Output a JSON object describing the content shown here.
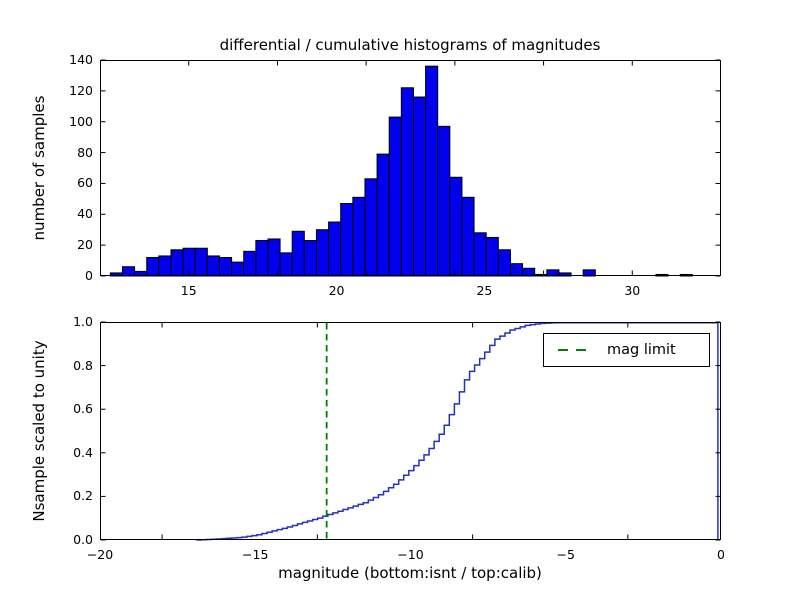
{
  "figure": {
    "title": "differential / cumulative histograms of magnitudes",
    "background": "#ffffff"
  },
  "colors": {
    "bar_fill": "#0000ee",
    "bar_edge": "#000000",
    "cdf_line": "#2233bb",
    "mag_limit_green": "#008000",
    "axis_black": "#000000"
  },
  "chart_data": [
    {
      "type": "bar",
      "subplot": "top",
      "title": "differential / cumulative histograms of magnitudes",
      "xlabel": "",
      "ylabel": "number of samples",
      "xlim": [
        12,
        33
      ],
      "ylim": [
        0,
        140
      ],
      "grid": false,
      "bin_start": 12.35,
      "bin_width": 0.41,
      "values": [
        2,
        6,
        3,
        12,
        13,
        17,
        18,
        18,
        13,
        12,
        9,
        16,
        23,
        24,
        15,
        29,
        23,
        30,
        35,
        47,
        51,
        63,
        79,
        103,
        122,
        116,
        136,
        97,
        64,
        51,
        28,
        25,
        17,
        8,
        5,
        1,
        4,
        2,
        0,
        4,
        0,
        0,
        0,
        0,
        0,
        1,
        0,
        1,
        0,
        0
      ],
      "ytick_values": [
        0,
        20,
        40,
        60,
        80,
        100,
        120,
        140
      ],
      "ytick_labels": [
        "0",
        "20",
        "40",
        "60",
        "80",
        "100",
        "120",
        "140"
      ],
      "xtick_label_entries": [
        {
          "value": 15,
          "text": "15"
        },
        {
          "value": 20,
          "text": "20"
        },
        {
          "value": 25,
          "text": "25"
        },
        {
          "value": 30,
          "text": "30"
        }
      ],
      "xtick_mark_values": [
        15,
        18,
        21,
        24,
        27,
        30
      ]
    },
    {
      "type": "line",
      "subplot": "bottom",
      "xlabel": "magnitude (bottom:isnt / top:calib)",
      "ylabel": "Nsample scaled to unity",
      "xlim": [
        -20,
        0
      ],
      "ylim": [
        0.0,
        1.0
      ],
      "grid": false,
      "legend_position": "upper right",
      "step_width": 0.163,
      "cdf_anchors": [
        [
          -16.9,
          0.0
        ],
        [
          -16.3,
          0.004
        ],
        [
          -15.5,
          0.012
        ],
        [
          -15.0,
          0.022
        ],
        [
          -14.5,
          0.04
        ],
        [
          -14.0,
          0.058
        ],
        [
          -13.5,
          0.08
        ],
        [
          -13.0,
          0.1
        ],
        [
          -12.7,
          0.115
        ],
        [
          -12.0,
          0.148
        ],
        [
          -11.5,
          0.172
        ],
        [
          -11.0,
          0.21
        ],
        [
          -10.5,
          0.26
        ],
        [
          -10.0,
          0.325
        ],
        [
          -9.5,
          0.4
        ],
        [
          -9.0,
          0.5
        ],
        [
          -8.6,
          0.62
        ],
        [
          -8.2,
          0.755
        ],
        [
          -7.7,
          0.845
        ],
        [
          -7.3,
          0.92
        ],
        [
          -6.8,
          0.963
        ],
        [
          -6.3,
          0.985
        ],
        [
          -5.8,
          0.994
        ],
        [
          -5.2,
          0.998
        ],
        [
          -0.2,
          0.999
        ],
        [
          -0.1,
          1.0
        ]
      ],
      "end_drop_x": -0.1,
      "mag_limit_x": -12.7,
      "ytick_values": [
        0.0,
        0.2,
        0.4,
        0.6,
        0.8,
        1.0
      ],
      "ytick_labels": [
        "0.0",
        "0.2",
        "0.4",
        "0.6",
        "0.8",
        "1.0"
      ],
      "xtick_label_entries": [
        {
          "value": -20,
          "text": "−20"
        },
        {
          "value": -15,
          "text": "−15"
        },
        {
          "value": -10,
          "text": "−10"
        },
        {
          "value": -5,
          "text": "−5"
        },
        {
          "value": 0,
          "text": "0"
        }
      ],
      "xtick_mark_values": [
        -18,
        -13,
        -8,
        -3
      ]
    }
  ],
  "legend": {
    "label": "mag limit"
  }
}
